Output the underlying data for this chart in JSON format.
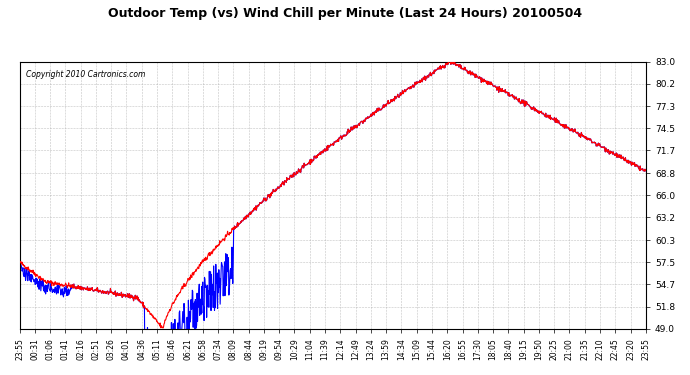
{
  "title": "Outdoor Temp (vs) Wind Chill per Minute (Last 24 Hours) 20100504",
  "copyright": "Copyright 2010 Cartronics.com",
  "background_color": "#ffffff",
  "plot_bg_color": "#ffffff",
  "line_color_temp": "#ff0000",
  "line_color_chill": "#0000ff",
  "grid_color": "#aaaaaa",
  "ylim": [
    49.0,
    83.0
  ],
  "yticks": [
    49.0,
    51.8,
    54.7,
    57.5,
    60.3,
    63.2,
    66.0,
    68.8,
    71.7,
    74.5,
    77.3,
    80.2,
    83.0
  ],
  "xtick_labels": [
    "23:55",
    "00:31",
    "01:06",
    "01:41",
    "02:16",
    "02:51",
    "03:26",
    "04:01",
    "04:36",
    "05:11",
    "05:46",
    "06:21",
    "06:58",
    "07:34",
    "08:09",
    "08:44",
    "09:19",
    "09:54",
    "10:29",
    "11:04",
    "11:39",
    "12:14",
    "12:49",
    "13:24",
    "13:59",
    "14:34",
    "15:09",
    "15:44",
    "16:20",
    "16:55",
    "17:30",
    "18:05",
    "18:40",
    "19:15",
    "19:50",
    "20:25",
    "21:00",
    "21:35",
    "22:10",
    "22:45",
    "23:20",
    "23:55"
  ],
  "num_points": 1440
}
